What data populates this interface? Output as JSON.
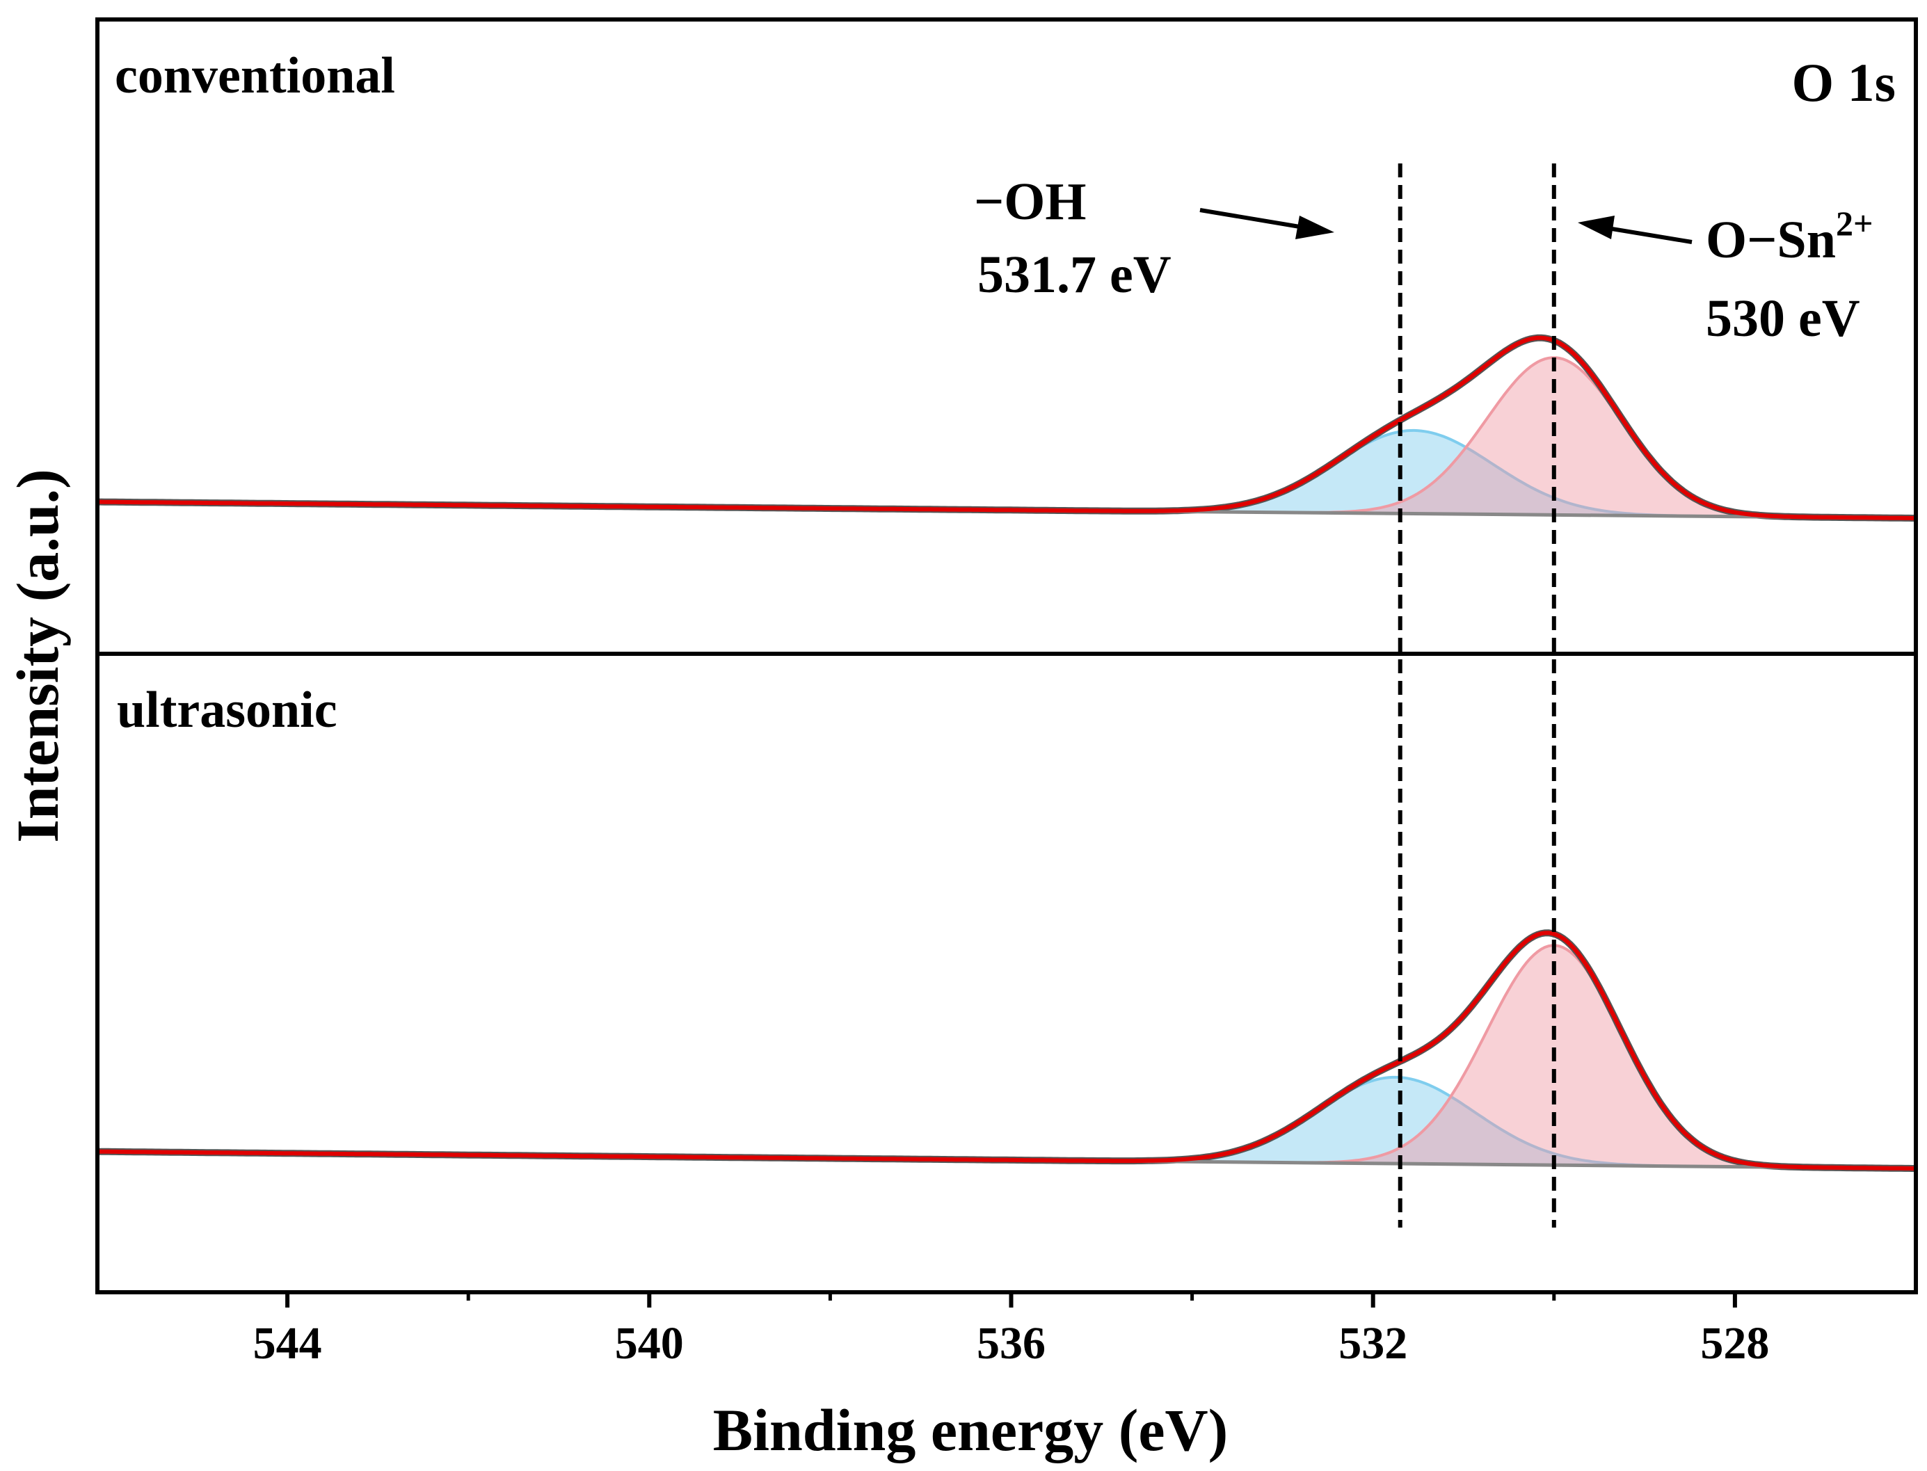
{
  "chart_data": {
    "type": "line",
    "title": "O 1s",
    "xlabel": "Binding energy (eV)",
    "ylabel": "Intensity (a.u.)",
    "x_reversed": true,
    "xlim": [
      546.1,
      526.0
    ],
    "xticks": [
      544,
      540,
      536,
      532,
      528
    ],
    "x_minor_ticks": [
      542,
      538,
      534,
      530
    ],
    "yticks_shown": false,
    "panels": [
      {
        "label": "conventional",
        "background": {
          "x": [
            546.1,
            526.0
          ],
          "y": [
            0.09,
            0.0
          ]
        },
        "components": [
          {
            "name": "−OH",
            "center": 531.55,
            "fwhm": 2.05,
            "height": 0.46,
            "color": "#7fcdee"
          },
          {
            "name": "O−Sn²⁺",
            "center": 530.0,
            "fwhm": 1.75,
            "height": 0.87,
            "color": "#ef9aa3"
          }
        ],
        "envelope_color": "#e00000",
        "raw_color": "#555555"
      },
      {
        "label": "ultrasonic",
        "background": {
          "x": [
            546.1,
            526.0
          ],
          "y": [
            0.09,
            0.0
          ]
        },
        "components": [
          {
            "name": "−OH",
            "center": 531.75,
            "fwhm": 2.05,
            "height": 0.46,
            "color": "#7fcdee"
          },
          {
            "name": "O−Sn²⁺",
            "center": 530.0,
            "fwhm": 1.75,
            "height": 1.17,
            "color": "#ef9aa3"
          }
        ],
        "envelope_color": "#e00000",
        "raw_color": "#555555"
      }
    ],
    "reference_lines": [
      531.7,
      530.0
    ],
    "annotations": [
      {
        "text_line1": "−OH",
        "text_line2": "531.7 eV"
      },
      {
        "text_line1_base": "O−Sn",
        "text_line1_sup": "2+",
        "text_line2": "530 eV"
      }
    ]
  }
}
